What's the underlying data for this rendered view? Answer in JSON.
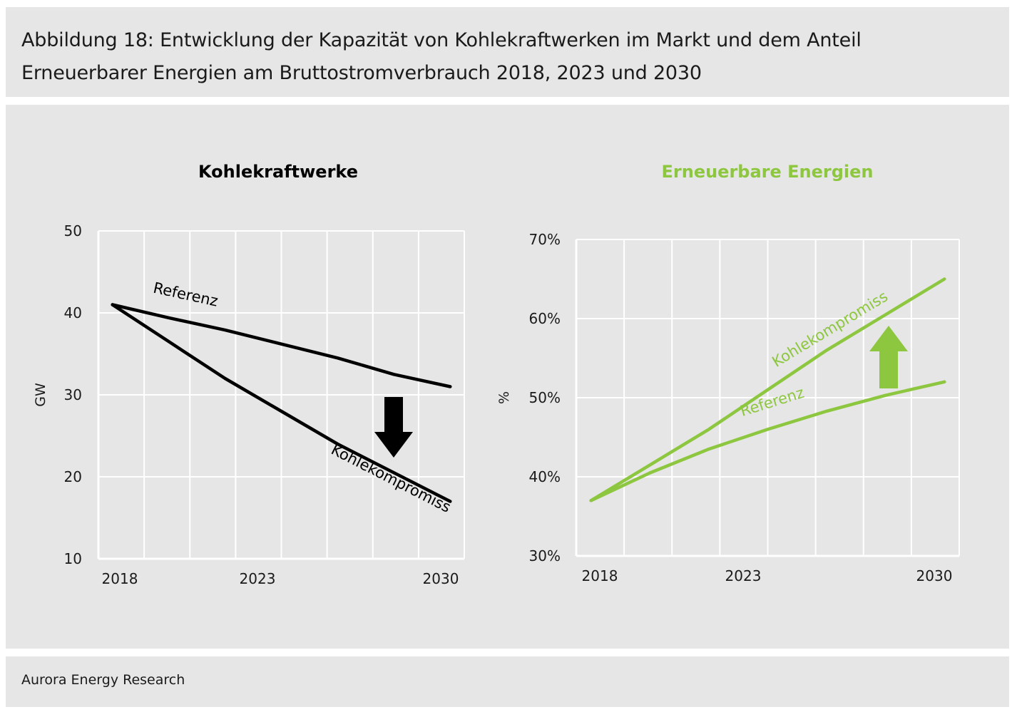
{
  "header": {
    "title_line1": "Abbildung 18: Entwicklung der Kapazität von Kohlekraftwerken im Markt und dem Anteil",
    "title_line2": "Erneuerbarer Energien am Bruttostromverbrauch 2018, 2023 und 2030"
  },
  "footer": {
    "source": "Aurora Energy Research"
  },
  "colors": {
    "panel_bg": "#e6e6e6",
    "black_series": "#000000",
    "green_series": "#8dc63f",
    "grid": "#ffffff"
  },
  "chart_data": [
    {
      "type": "line",
      "title": "Kohlekraftwerke",
      "title_color": "#000000",
      "ylabel": "GW",
      "xlabel": "",
      "x_ticks": [
        "2018",
        "2023",
        "2030"
      ],
      "xlim": [
        2017.5,
        2030.5
      ],
      "ylim": [
        10,
        50
      ],
      "y_ticks": [
        "10",
        "20",
        "30",
        "40",
        "50"
      ],
      "grid": true,
      "series": [
        {
          "name": "Referenz",
          "color": "#000000",
          "x": [
            2018,
            2020,
            2022,
            2024,
            2026,
            2028,
            2030
          ],
          "y": [
            41,
            39.4,
            37.9,
            36.2,
            34.5,
            32.5,
            31
          ]
        },
        {
          "name": "Kohlekompromiss",
          "color": "#000000",
          "x": [
            2018,
            2020,
            2022,
            2024,
            2026,
            2028,
            2030
          ],
          "y": [
            41,
            36.5,
            32,
            28,
            24,
            20.5,
            17
          ]
        }
      ],
      "annotations": [
        {
          "type": "arrow",
          "direction": "down",
          "color": "#000000"
        }
      ]
    },
    {
      "type": "line",
      "title": "Erneuerbare Energien",
      "title_color": "#8dc63f",
      "ylabel": "%",
      "xlabel": "",
      "x_ticks": [
        "2018",
        "2023",
        "2030"
      ],
      "xlim": [
        2017.5,
        2030.5
      ],
      "ylim": [
        30,
        70
      ],
      "y_ticks": [
        "30%",
        "40%",
        "50%",
        "60%",
        "70%"
      ],
      "grid": true,
      "series": [
        {
          "name": "Kohlekompromiss",
          "color": "#8dc63f",
          "x": [
            2018,
            2020,
            2022,
            2024,
            2026,
            2028,
            2030
          ],
          "y": [
            37,
            41.5,
            46,
            51,
            56,
            60.5,
            65
          ]
        },
        {
          "name": "Referenz",
          "color": "#8dc63f",
          "x": [
            2018,
            2020,
            2022,
            2024,
            2026,
            2028,
            2030
          ],
          "y": [
            37,
            40.5,
            43.5,
            46,
            48.3,
            50.3,
            52
          ]
        }
      ],
      "annotations": [
        {
          "type": "arrow",
          "direction": "up",
          "color": "#8dc63f"
        }
      ]
    }
  ]
}
